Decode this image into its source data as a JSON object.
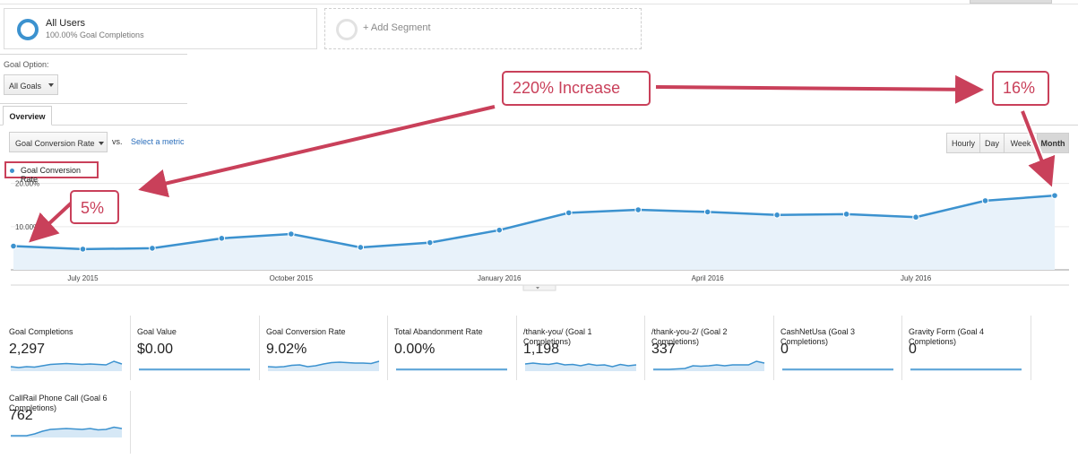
{
  "segments": {
    "active": {
      "title": "All Users",
      "subtitle": "100.00% Goal Completions"
    },
    "add_label": "+ Add Segment"
  },
  "goal_option": {
    "label": "Goal Option:",
    "selected": "All Goals"
  },
  "tabs": [
    {
      "label": "Overview",
      "active": true
    }
  ],
  "metric_picker": {
    "selected": "Goal Conversion Rate",
    "vs_label": "vs.",
    "select_metric_link": "Select a metric"
  },
  "period_buttons": [
    {
      "label": "Hourly",
      "active": false
    },
    {
      "label": "Day",
      "active": false
    },
    {
      "label": "Week",
      "active": false
    },
    {
      "label": "Month",
      "active": true
    }
  ],
  "legend_label": "Goal Conversion Rate",
  "chart_data": {
    "type": "area",
    "series": [
      {
        "name": "Goal Conversion Rate",
        "color": "#3c92cf",
        "x": [
          "2015-06",
          "2015-07",
          "2015-08",
          "2015-09",
          "2015-10",
          "2015-11",
          "2015-12",
          "2016-01",
          "2016-02",
          "2016-03",
          "2016-04",
          "2016-05",
          "2016-06",
          "2016-07",
          "2016-08",
          "2016-09"
        ],
        "values": [
          5.5,
          4.8,
          5.0,
          7.3,
          8.3,
          5.2,
          6.3,
          9.2,
          13.2,
          13.9,
          13.4,
          12.7,
          12.9,
          12.2,
          16.0,
          17.2
        ]
      }
    ],
    "x_tick_labels": [
      "July 2015",
      "October 2015",
      "January 2016",
      "April 2016",
      "July 2016"
    ],
    "y_tick_labels": [
      "20.00%",
      "10.00%"
    ],
    "ylim": [
      0,
      22
    ],
    "grid": true,
    "legend_position": "top-left"
  },
  "annotations": {
    "increase": "220% Increase",
    "end_value": "16%",
    "start_value": "5%",
    "color": "#c9405a"
  },
  "scorecards": [
    {
      "label": "Goal Completions",
      "value": "2,297",
      "spark": [
        0.3,
        0.2,
        0.3,
        0.25,
        0.4,
        0.55,
        0.6,
        0.65,
        0.6,
        0.55,
        0.6,
        0.55,
        0.5,
        0.9,
        0.6
      ]
    },
    {
      "label": "Goal Value",
      "value": "$0.00",
      "spark": [
        0,
        0,
        0,
        0,
        0,
        0,
        0,
        0,
        0,
        0,
        0,
        0,
        0,
        0,
        0
      ]
    },
    {
      "label": "Goal Conversion Rate",
      "value": "9.02%",
      "spark": [
        0.3,
        0.25,
        0.3,
        0.45,
        0.5,
        0.3,
        0.4,
        0.6,
        0.75,
        0.8,
        0.75,
        0.7,
        0.7,
        0.65,
        0.9
      ]
    },
    {
      "label": "Total Abandonment Rate",
      "value": "0.00%",
      "spark": [
        0,
        0,
        0,
        0,
        0,
        0,
        0,
        0,
        0,
        0,
        0,
        0,
        0,
        0,
        0
      ]
    },
    {
      "label": "/thank-you/ (Goal 1 Completions)",
      "value": "1,198",
      "spark": [
        0.6,
        0.7,
        0.6,
        0.55,
        0.7,
        0.5,
        0.55,
        0.4,
        0.6,
        0.45,
        0.5,
        0.3,
        0.55,
        0.4,
        0.5
      ]
    },
    {
      "label": "/thank-you-2/ (Goal 2 Completions)",
      "value": "337",
      "spark": [
        0,
        0,
        0,
        0.05,
        0.1,
        0.4,
        0.35,
        0.4,
        0.5,
        0.4,
        0.5,
        0.5,
        0.5,
        0.9,
        0.7
      ]
    },
    {
      "label": "CashNetUsa (Goal 3 Completions)",
      "value": "0",
      "spark": [
        0,
        0,
        0,
        0,
        0,
        0,
        0,
        0,
        0,
        0,
        0,
        0,
        0,
        0,
        0
      ]
    },
    {
      "label": "Gravity Form (Goal 4 Completions)",
      "value": "0",
      "spark": [
        0,
        0,
        0,
        0,
        0,
        0,
        0,
        0,
        0,
        0,
        0,
        0,
        0,
        0,
        0
      ]
    },
    {
      "label": "CallRail Phone Call (Goal 6 Completions)",
      "value": "762",
      "spark": [
        0,
        0,
        0,
        0.2,
        0.5,
        0.7,
        0.75,
        0.8,
        0.75,
        0.7,
        0.8,
        0.65,
        0.7,
        0.95,
        0.8
      ]
    }
  ]
}
